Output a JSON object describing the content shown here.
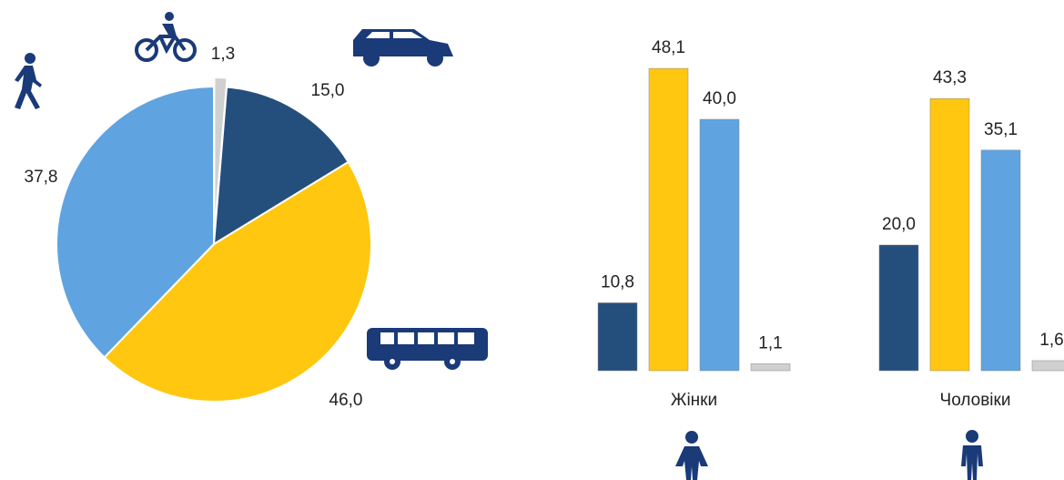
{
  "chart_data": [
    {
      "type": "pie",
      "values": [
        1.3,
        15.0,
        46.0,
        37.8
      ],
      "value_labels": [
        "1,3",
        "15,0",
        "46,0",
        "37,8"
      ],
      "colors": [
        "#d0d0d0",
        "#244f7d",
        "#ffc710",
        "#5fa3e1"
      ]
    },
    {
      "type": "bar",
      "categories": [
        "Жінки",
        "Чоловіки"
      ],
      "series": [
        {
          "color": "#244f7d",
          "values": [
            10.8,
            20.0
          ],
          "value_labels": [
            "10,8",
            "20,0"
          ]
        },
        {
          "color": "#ffc710",
          "values": [
            48.1,
            43.3
          ],
          "value_labels": [
            "48,1",
            "43,3"
          ]
        },
        {
          "color": "#5fa3e1",
          "values": [
            40.0,
            35.1
          ],
          "value_labels": [
            "40,0",
            "35,1"
          ]
        },
        {
          "color": "#d0d0d0",
          "values": [
            1.1,
            1.6
          ],
          "value_labels": [
            "1,1",
            "1,6"
          ]
        }
      ]
    }
  ]
}
